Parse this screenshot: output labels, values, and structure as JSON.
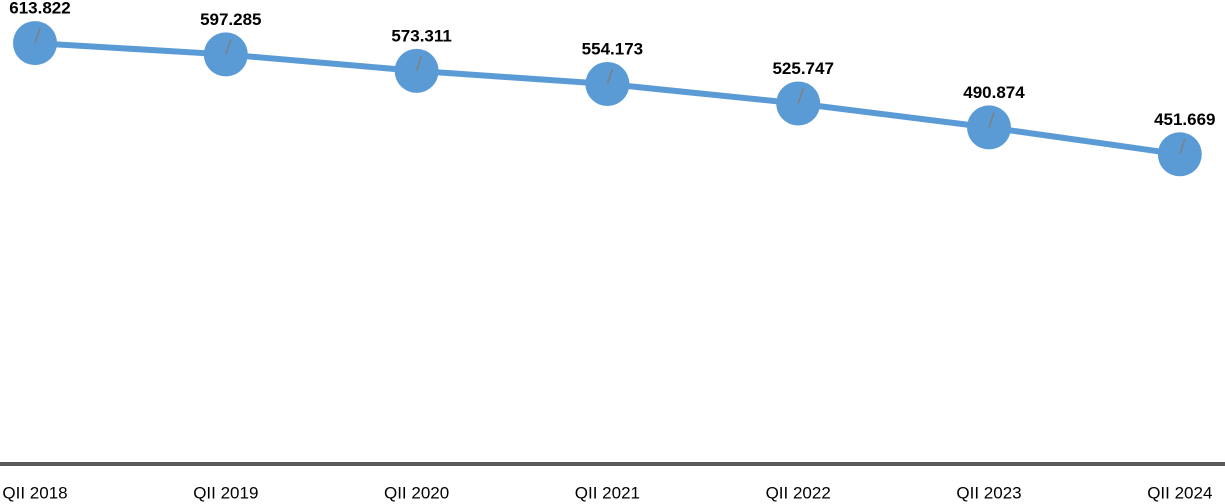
{
  "chart_data": {
    "type": "line",
    "categories": [
      "QII 2018",
      "QII 2019",
      "QII 2020",
      "QII 2021",
      "QII 2022",
      "QII 2023",
      "QII 2024"
    ],
    "values": [
      613.822,
      597.285,
      573.311,
      554.173,
      525.747,
      490.874,
      451.669
    ],
    "color": "#5b9bd5",
    "ylim": [
      0,
      700
    ]
  }
}
